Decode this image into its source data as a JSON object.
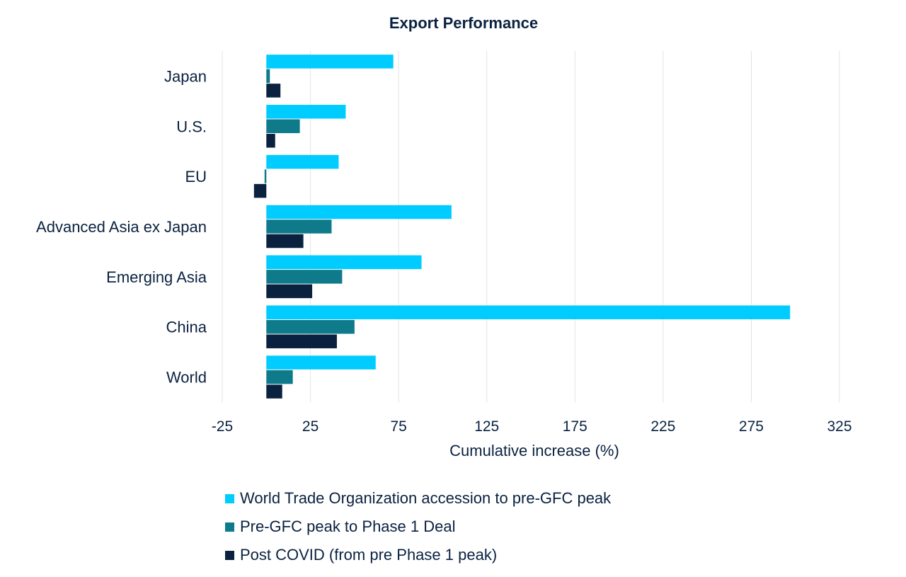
{
  "chart_data": {
    "type": "bar",
    "orientation": "horizontal",
    "title": "Export Performance",
    "xlabel": "Cumulative increase (%)",
    "ylabel": "",
    "xlim": [
      -25,
      325
    ],
    "x_ticks": [
      "-25",
      "25",
      "75",
      "125",
      "175",
      "225",
      "275",
      "325"
    ],
    "categories": [
      "Japan",
      "U.S.",
      "EU",
      "Advanced Asia ex Japan",
      "Emerging Asia",
      "China",
      "World"
    ],
    "series": [
      {
        "name": "World Trade Organization accession to pre-GFC peak",
        "color": "#00ccff",
        "values": [
          72,
          45,
          41,
          105,
          88,
          297,
          62
        ]
      },
      {
        "name": "Pre-GFC peak to Phase 1 Deal",
        "color": "#0f7a8a",
        "values": [
          2,
          19,
          -1,
          37,
          43,
          50,
          15
        ]
      },
      {
        "name": "Post COVID (from pre Phase 1 peak)",
        "color": "#0a2240",
        "values": [
          8,
          5,
          -7,
          21,
          26,
          40,
          9
        ]
      }
    ],
    "grid": true,
    "legend_position": "bottom"
  }
}
